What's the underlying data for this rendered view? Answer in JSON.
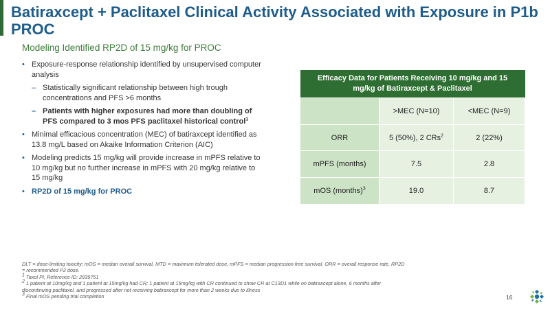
{
  "slide": {
    "title": "Batiraxcept + Paclitaxel Clinical Activity Associated with Exposure in P1b PROC",
    "subtitle": "Modeling Identified RP2D of 15 mg/kg for PROC",
    "page_number": "16"
  },
  "bullets": {
    "b1": "Exposure-response relationship identified by unsupervised computer analysis",
    "b1_sub1": "Statistically significant relationship between high trough concentrations and PFS >6 months",
    "b1_sub2": "Patients with higher exposures had more than doubling of PFS compared to 3 mos PFS paclitaxel historical control",
    "b1_sub2_sup": "1",
    "b2": "Minimal efficacious concentration (MEC) of batiraxcept identified as 13.8 mg/L based on Akaike Information Criterion (AIC)",
    "b3": "Modeling predicts 15 mg/kg will provide increase in mPFS relative to 10 mg/kg but no further increase in mPFS with 20 mg/kg relative to 15 mg/kg",
    "b4": "RP2D of 15 mg/kg for PROC"
  },
  "table": {
    "header": "Efficacy Data for Patients Receiving 10 mg/kg and 15 mg/kg of Batiraxcept & Paclitaxel",
    "col1": ">MEC (N=10)",
    "col2": "<MEC (N=9)",
    "rows": [
      {
        "label": "ORR",
        "label_sup": "",
        "v1": "5 (50%), 2 CRs",
        "v1_sup": "2",
        "v2": "2 (22%)"
      },
      {
        "label": "mPFS (months)",
        "label_sup": "",
        "v1": "7.5",
        "v1_sup": "",
        "v2": "2.8"
      },
      {
        "label": "mOS (months)",
        "label_sup": "3",
        "v1": "19.0",
        "v1_sup": "",
        "v2": "8.7"
      }
    ]
  },
  "footnotes": {
    "abbrev": "DLT = dose-limiting toxicity; mOS = median overall survival, MTD = maximum tolerated dose, mPFS = median progression free survival, ORR = overall response rate, RP2D = recommended P2 dose.",
    "fn1": "Taxol PI, Reference ID: 2939751",
    "fn1_num": "1",
    "fn2": "1 patient at 10mg/kg and 1 patient at 15mg/kg had CR; 1 patient at 15mg/kg with CR continued to show CR at C13D1 while on batiraxcept alone, 6 months after discontinuing paclitaxel, and progressed after not receiving batiraxcept for more than 2 weeks due to illness",
    "fn2_num": "2",
    "fn3": "Final mOS pending trial completion",
    "fn3_num": "3"
  },
  "colors": {
    "title": "#1e5c8a",
    "accent_green": "#2e6b36",
    "subtitle_green": "#3f7d3c",
    "table_header": "#2f6e32",
    "table_label_cell": "#cde3c6",
    "table_value_cell": "#e6f1e2",
    "logo_blue": "#1a6fa8",
    "logo_green": "#6db33f"
  },
  "icons": {
    "logo": "company-logo-icon",
    "bullet": "bullet-dot-icon",
    "sub_bullet": "dash-icon"
  }
}
